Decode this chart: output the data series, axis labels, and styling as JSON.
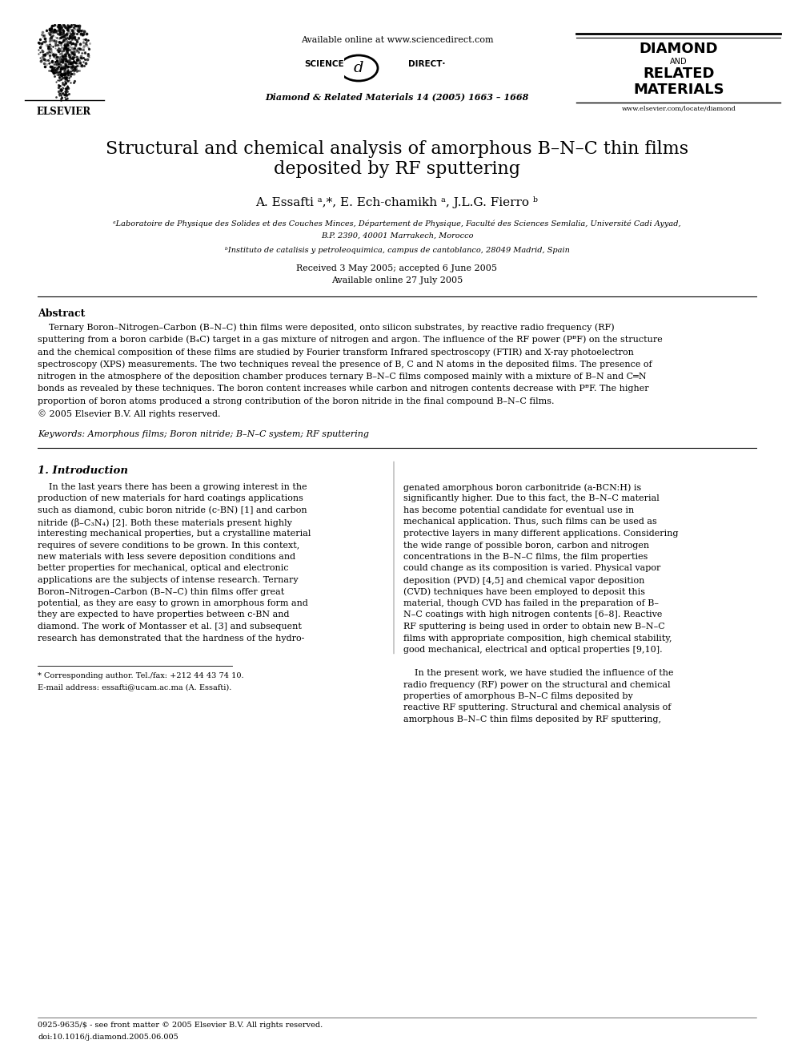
{
  "bg_color": "#ffffff",
  "text_color": "#000000",
  "page_width": 9.92,
  "page_height": 13.23,
  "header_available": "Available online at www.sciencedirect.com",
  "header_science": "SCIENCE",
  "header_direct": "DIRECT·",
  "header_journal": "Diamond & Related Materials 14 (2005) 1663 – 1668",
  "header_diamond1": "DIAMOND",
  "header_diamond2": "AND",
  "header_diamond3": "RELATED",
  "header_diamond4": "MATERIALS",
  "header_url": "www.elsevier.com/locate/diamond",
  "header_elsevier": "ELSEVIER",
  "title_line1": "Structural and chemical analysis of amorphous B–N–C thin films",
  "title_line2": "deposited by RF sputtering",
  "authors": "A. Essafti ᵃ,*, E. Ech-chamikh ᵃ, J.L.G. Fierro ᵇ",
  "affil_a1": "ᵃLaboratoire de Physique des Solides et des Couches Minces, Département de Physique, Faculté des Sciences Semlalia, Université Cadi Ayyad,",
  "affil_a2": "B.P. 2390, 40001 Marrakech, Morocco",
  "affil_b": "ᵇInstituto de catalisis y petroleoquimica, campus de cantoblanco, 28049 Madrid, Spain",
  "received": "Received 3 May 2005; accepted 6 June 2005",
  "available_online": "Available online 27 July 2005",
  "abstract_title": "Abstract",
  "abstract_indent": "    Ternary Boron–Nitrogen–Carbon (B–N–C) thin films were deposited, onto silicon substrates, by reactive radio frequency (RF)",
  "abstract_lines": [
    "    Ternary Boron–Nitrogen–Carbon (B–N–C) thin films were deposited, onto silicon substrates, by reactive radio frequency (RF)",
    "sputtering from a boron carbide (B₄C) target in a gas mixture of nitrogen and argon. The influence of the RF power (PᴯF) on the structure",
    "and the chemical composition of these films are studied by Fourier transform Infrared spectroscopy (FTIR) and X-ray photoelectron",
    "spectroscopy (XPS) measurements. The two techniques reveal the presence of B, C and N atoms in the deposited films. The presence of",
    "nitrogen in the atmosphere of the deposition chamber produces ternary B–N–C films composed mainly with a mixture of B–N and C═N",
    "bonds as revealed by these techniques. The boron content increases while carbon and nitrogen contents decrease with PᴯF. The higher",
    "proportion of boron atoms produced a strong contribution of the boron nitride in the final compound B–N–C films.",
    "© 2005 Elsevier B.V. All rights reserved."
  ],
  "keywords": "Keywords: Amorphous films; Boron nitride; B–N–C system; RF sputtering",
  "section1_title": "1. Introduction",
  "col1_lines": [
    "    In the last years there has been a growing interest in the",
    "production of new materials for hard coatings applications",
    "such as diamond, cubic boron nitride (c-BN) [1] and carbon",
    "nitride (β–C₃N₄) [2]. Both these materials present highly",
    "interesting mechanical properties, but a crystalline material",
    "requires of severe conditions to be grown. In this context,",
    "new materials with less severe deposition conditions and",
    "better properties for mechanical, optical and electronic",
    "applications are the subjects of intense research. Ternary",
    "Boron–Nitrogen–Carbon (B–N–C) thin films offer great",
    "potential, as they are easy to grown in amorphous form and",
    "they are expected to have properties between c-BN and",
    "diamond. The work of Montasser et al. [3] and subsequent",
    "research has demonstrated that the hardness of the hydro-"
  ],
  "col2_lines": [
    "genated amorphous boron carbonitride (a-BCN:H) is",
    "significantly higher. Due to this fact, the B–N–C material",
    "has become potential candidate for eventual use in",
    "mechanical application. Thus, such films can be used as",
    "protective layers in many different applications. Considering",
    "the wide range of possible boron, carbon and nitrogen",
    "concentrations in the B–N–C films, the film properties",
    "could change as its composition is varied. Physical vapor",
    "deposition (PVD) [4,5] and chemical vapor deposition",
    "(CVD) techniques have been employed to deposit this",
    "material, though CVD has failed in the preparation of B–",
    "N–C coatings with high nitrogen contents [6–8]. Reactive",
    "RF sputtering is being used in order to obtain new B–N–C",
    "films with appropriate composition, high chemical stability,",
    "good mechanical, electrical and optical properties [9,10].",
    "",
    "    In the present work, we have studied the influence of the",
    "radio frequency (RF) power on the structural and chemical",
    "properties of amorphous B–N–C films deposited by",
    "reactive RF sputtering. Structural and chemical analysis of",
    "amorphous B–N–C thin films deposited by RF sputtering,"
  ],
  "footnote_line": "* Corresponding author. Tel./fax: +212 44 43 74 10.",
  "footnote_email": "E-mail address: essafti@ucam.ac.ma (A. Essafti).",
  "footer_issn": "0925-9635/$ - see front matter © 2005 Elsevier B.V. All rights reserved.",
  "footer_doi": "doi:10.1016/j.diamond.2005.06.005"
}
